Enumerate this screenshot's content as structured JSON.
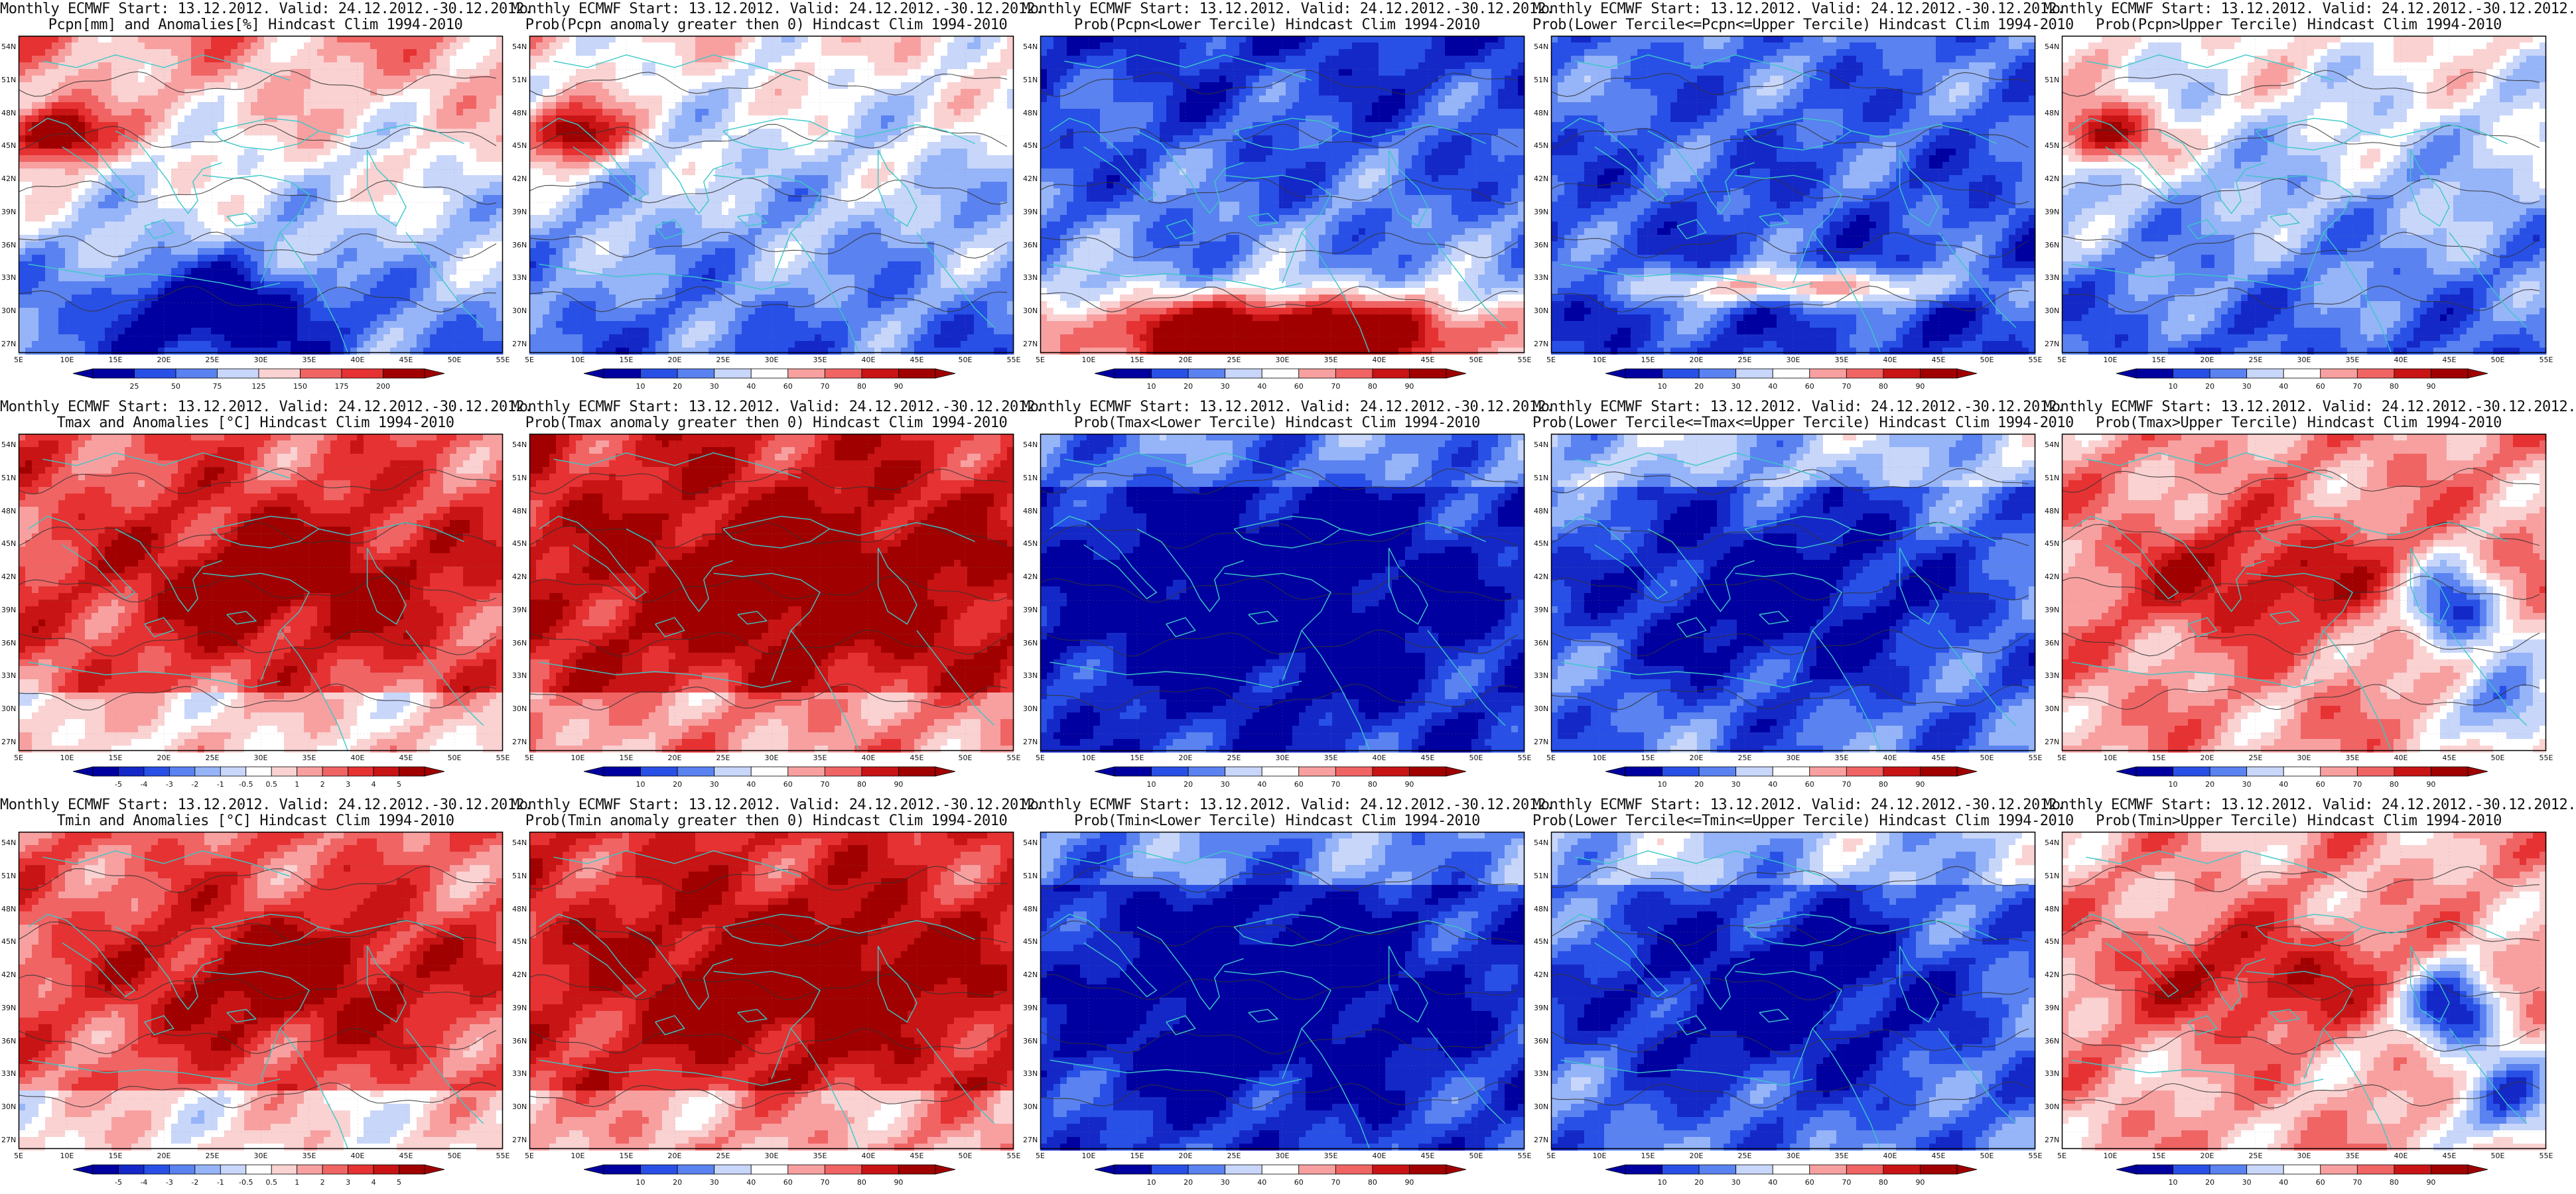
{
  "lat_ticks": [
    "54N",
    "51N",
    "48N",
    "45N",
    "42N",
    "39N",
    "36N",
    "33N",
    "30N",
    "27N"
  ],
  "lon_ticks": [
    "5E",
    "10E",
    "15E",
    "20E",
    "25E",
    "30E",
    "35E",
    "40E",
    "45E",
    "50E",
    "55E"
  ],
  "colors": {
    "coast": "#3cc8c8",
    "contour": "#333333",
    "frame": "#000000",
    "scale": [
      "#0000a0",
      "#1428c8",
      "#2850e6",
      "#5a82f0",
      "#96b4f8",
      "#c8d6fa",
      "#ffffff",
      "#fad2d2",
      "#f8a0a0",
      "#f06464",
      "#e63232",
      "#c81414",
      "#a00000"
    ]
  },
  "colorbars": {
    "pcpn_anom": [
      "25",
      "50",
      "75",
      "125",
      "150",
      "175",
      "200"
    ],
    "temp_anom": [
      "-5",
      "-4",
      "-3",
      "-2",
      "-1",
      "-0.5",
      "0.5",
      "1",
      "2",
      "3",
      "4",
      "5"
    ],
    "prob": [
      "10",
      "20",
      "30",
      "40",
      "60",
      "70",
      "80",
      "90"
    ]
  },
  "panels": [
    {
      "id": "p00",
      "title1": "Monthly ECMWF Start: 13.12.2012. Valid: 24.12.2012.-30.12.2012.",
      "title2": "Pcpn[mm] and Anomalies[%] Hindcast Clim 1994-2010",
      "bar": "pcpn_anom",
      "pattern": "pcpn_anom",
      "bias": 0.0
    },
    {
      "id": "p01",
      "title1": "Monthly ECMWF Start: 13.12.2012. Valid: 24.12.2012.-30.12.2012.",
      "title2": "Prob(Pcpn anomaly greater then 0) Hindcast Clim 1994-2010",
      "bar": "prob",
      "pattern": "pcpn_prob",
      "bias": -0.1
    },
    {
      "id": "p02",
      "title1": "Monthly ECMWF Start: 13.12.2012. Valid: 24.12.2012.-30.12.2012.",
      "title2": "Prob(Pcpn<Lower Tercile) Hindcast Clim 1994-2010",
      "bar": "prob",
      "pattern": "pcpn_lower",
      "bias": 0.0
    },
    {
      "id": "p03",
      "title1": "Monthly ECMWF Start: 13.12.2012. Valid: 24.12.2012.-30.12.2012.",
      "title2": "Prob(Lower Tercile<=Pcpn<=Upper Tercile) Hindcast Clim 1994-2010",
      "bar": "prob",
      "pattern": "pcpn_mid",
      "bias": 0.0
    },
    {
      "id": "p04",
      "title1": "Monthly ECMWF Start: 13.12.2012. Valid: 24.12.2012.-30.12.2012.",
      "title2": "Prob(Pcpn>Upper Tercile) Hindcast Clim 1994-2010",
      "bar": "prob",
      "pattern": "pcpn_prob",
      "bias": -0.15
    },
    {
      "id": "p10",
      "title1": "Monthly ECMWF Start: 13.12.2012. Valid: 24.12.2012.-30.12.2012.",
      "title2": "Tmax and Anomalies [°C] Hindcast Clim 1994-2010",
      "bar": "temp_anom",
      "pattern": "warm",
      "bias": 0.25
    },
    {
      "id": "p11",
      "title1": "Monthly ECMWF Start: 13.12.2012. Valid: 24.12.2012.-30.12.2012.",
      "title2": "Prob(Tmax anomaly greater then 0) Hindcast Clim 1994-2010",
      "bar": "prob",
      "pattern": "warm",
      "bias": 0.45
    },
    {
      "id": "p12",
      "title1": "Monthly ECMWF Start: 13.12.2012. Valid: 24.12.2012.-30.12.2012.",
      "title2": "Prob(Tmax<Lower Tercile) Hindcast Clim 1994-2010",
      "bar": "prob",
      "pattern": "cold",
      "bias": -0.55
    },
    {
      "id": "p13",
      "title1": "Monthly ECMWF Start: 13.12.2012. Valid: 24.12.2012.-30.12.2012.",
      "title2": "Prob(Lower Tercile<=Tmax<=Upper Tercile) Hindcast Clim 1994-2010",
      "bar": "prob",
      "pattern": "cold",
      "bias": -0.3
    },
    {
      "id": "p14",
      "title1": "Monthly ECMWF Start: 13.12.2012. Valid: 24.12.2012.-30.12.2012.",
      "title2": "Prob(Tmax>Upper Tercile) Hindcast Clim 1994-2010",
      "bar": "prob",
      "pattern": "warm_east_cold",
      "bias": 0.15
    },
    {
      "id": "p20",
      "title1": "Monthly ECMWF Start: 13.12.2012. Valid: 24.12.2012.-30.12.2012.",
      "title2": "Tmin and Anomalies [°C] Hindcast Clim 1994-2010",
      "bar": "temp_anom",
      "pattern": "warm",
      "bias": 0.2
    },
    {
      "id": "p21",
      "title1": "Monthly ECMWF Start: 13.12.2012. Valid: 24.12.2012.-30.12.2012.",
      "title2": "Prob(Tmin anomaly greater then 0) Hindcast Clim 1994-2010",
      "bar": "prob",
      "pattern": "warm",
      "bias": 0.4
    },
    {
      "id": "p22",
      "title1": "Monthly ECMWF Start: 13.12.2012. Valid: 24.12.2012.-30.12.2012.",
      "title2": "Prob(Tmin<Lower Tercile) Hindcast Clim 1994-2010",
      "bar": "prob",
      "pattern": "cold",
      "bias": -0.5
    },
    {
      "id": "p23",
      "title1": "Monthly ECMWF Start: 13.12.2012. Valid: 24.12.2012.-30.12.2012.",
      "title2": "Prob(Lower Tercile<=Tmin<=Upper Tercile) Hindcast Clim 1994-2010",
      "bar": "prob",
      "pattern": "cold",
      "bias": -0.3
    },
    {
      "id": "p24",
      "title1": "Monthly ECMWF Start: 13.12.2012. Valid: 24.12.2012.-30.12.2012.",
      "title2": "Prob(Tmin>Upper Tercile) Hindcast Clim 1994-2010",
      "bar": "prob",
      "pattern": "warm_east_cold",
      "bias": 0.1
    }
  ]
}
